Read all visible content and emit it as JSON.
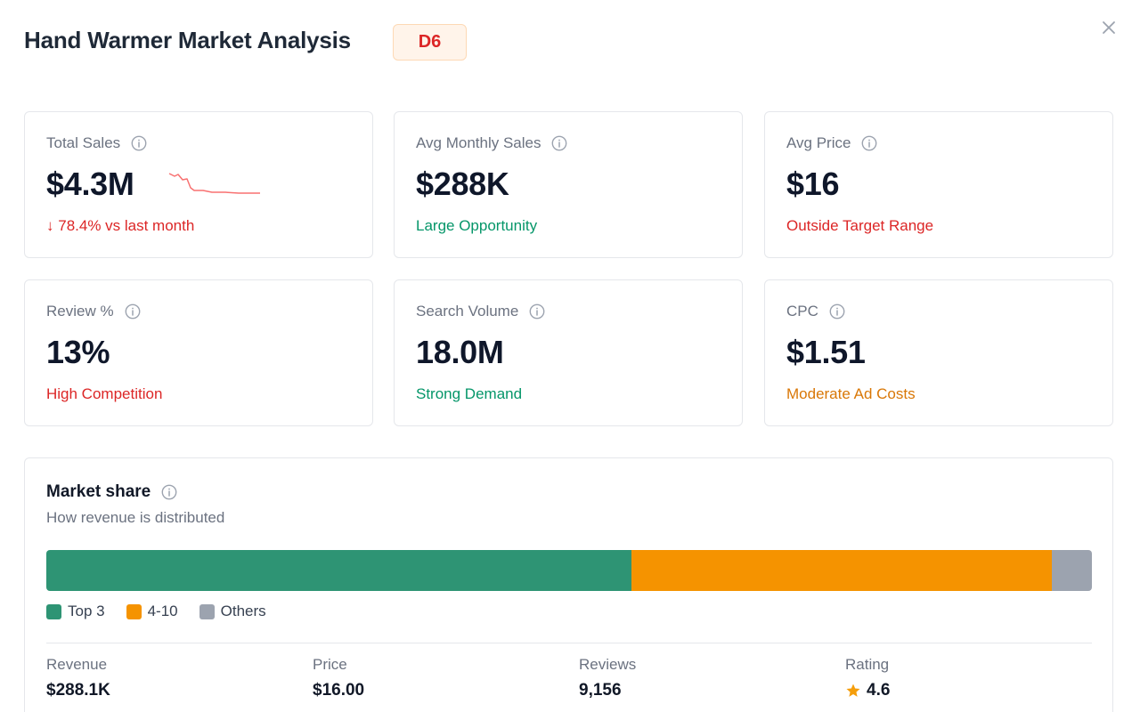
{
  "header": {
    "title": "Hand Warmer Market Analysis",
    "badge": "D6"
  },
  "metrics": [
    {
      "label": "Total Sales",
      "value": "$4.3M",
      "sub_arrow": "↓",
      "sub": "78.4% vs last month",
      "sub_color": "#dc2626"
    },
    {
      "label": "Avg Monthly Sales",
      "value": "$288K",
      "sub": "Large Opportunity",
      "sub_color": "#059669"
    },
    {
      "label": "Avg Price",
      "value": "$16",
      "sub": "Outside Target Range",
      "sub_color": "#dc2626"
    },
    {
      "label": "Review %",
      "value": "13%",
      "sub": "High Competition",
      "sub_color": "#dc2626"
    },
    {
      "label": "Search Volume",
      "value": "18.0M",
      "sub": "Strong Demand",
      "sub_color": "#059669"
    },
    {
      "label": "CPC",
      "value": "$1.51",
      "sub": "Moderate Ad Costs",
      "sub_color": "#d97706"
    }
  ],
  "market_share": {
    "title": "Market share",
    "subtitle": "How revenue is distributed",
    "segments": [
      {
        "label": "Top 3",
        "share": 56,
        "color": "#2e9474"
      },
      {
        "label": "4-10",
        "share": 40.2,
        "color": "#f59300"
      },
      {
        "label": "Others",
        "share": 3.8,
        "color": "#9ca3af"
      }
    ],
    "stats": [
      {
        "label": "Revenue",
        "value": "$288.1K"
      },
      {
        "label": "Price",
        "value": "$16.00"
      },
      {
        "label": "Reviews",
        "value": "9,156"
      },
      {
        "label": "Rating",
        "value": "4.6",
        "icon": "star-icon"
      }
    ]
  },
  "icons": [
    "close-icon",
    "info-icon",
    "arrow-down-icon",
    "star-icon"
  ]
}
